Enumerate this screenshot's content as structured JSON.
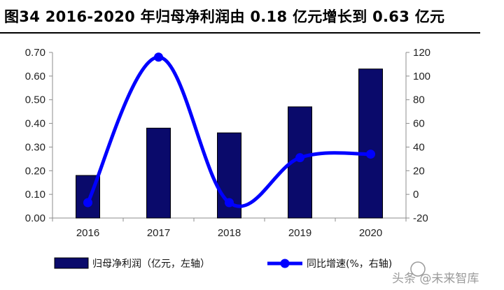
{
  "title": "图34 2016-2020 年归母净利润由 0.18 亿元增长到 0.63 亿元",
  "watermark": "头条 @未来智库",
  "colors": {
    "bar": "#0a0a6b",
    "line": "#0000ff"
  },
  "chart_data": {
    "type": "bar",
    "categories": [
      "2016",
      "2017",
      "2018",
      "2019",
      "2020"
    ],
    "series": [
      {
        "name": "归母净利润（亿元，左轴）",
        "type": "bar",
        "axis": "left",
        "values": [
          0.18,
          0.38,
          0.36,
          0.47,
          0.63
        ]
      },
      {
        "name": "同比增速(%，右轴)",
        "type": "line",
        "axis": "right",
        "values": [
          -7,
          116,
          -7,
          31,
          34
        ]
      }
    ],
    "y_left": {
      "min": 0,
      "max": 0.7,
      "ticks": [
        "0.00",
        "0.10",
        "0.20",
        "0.30",
        "0.40",
        "0.50",
        "0.60",
        "0.70"
      ]
    },
    "y_right": {
      "min": -20,
      "max": 120,
      "ticks": [
        "-20",
        "0",
        "20",
        "40",
        "60",
        "80",
        "100",
        "120"
      ]
    },
    "grid": false,
    "legend_position": "bottom"
  }
}
